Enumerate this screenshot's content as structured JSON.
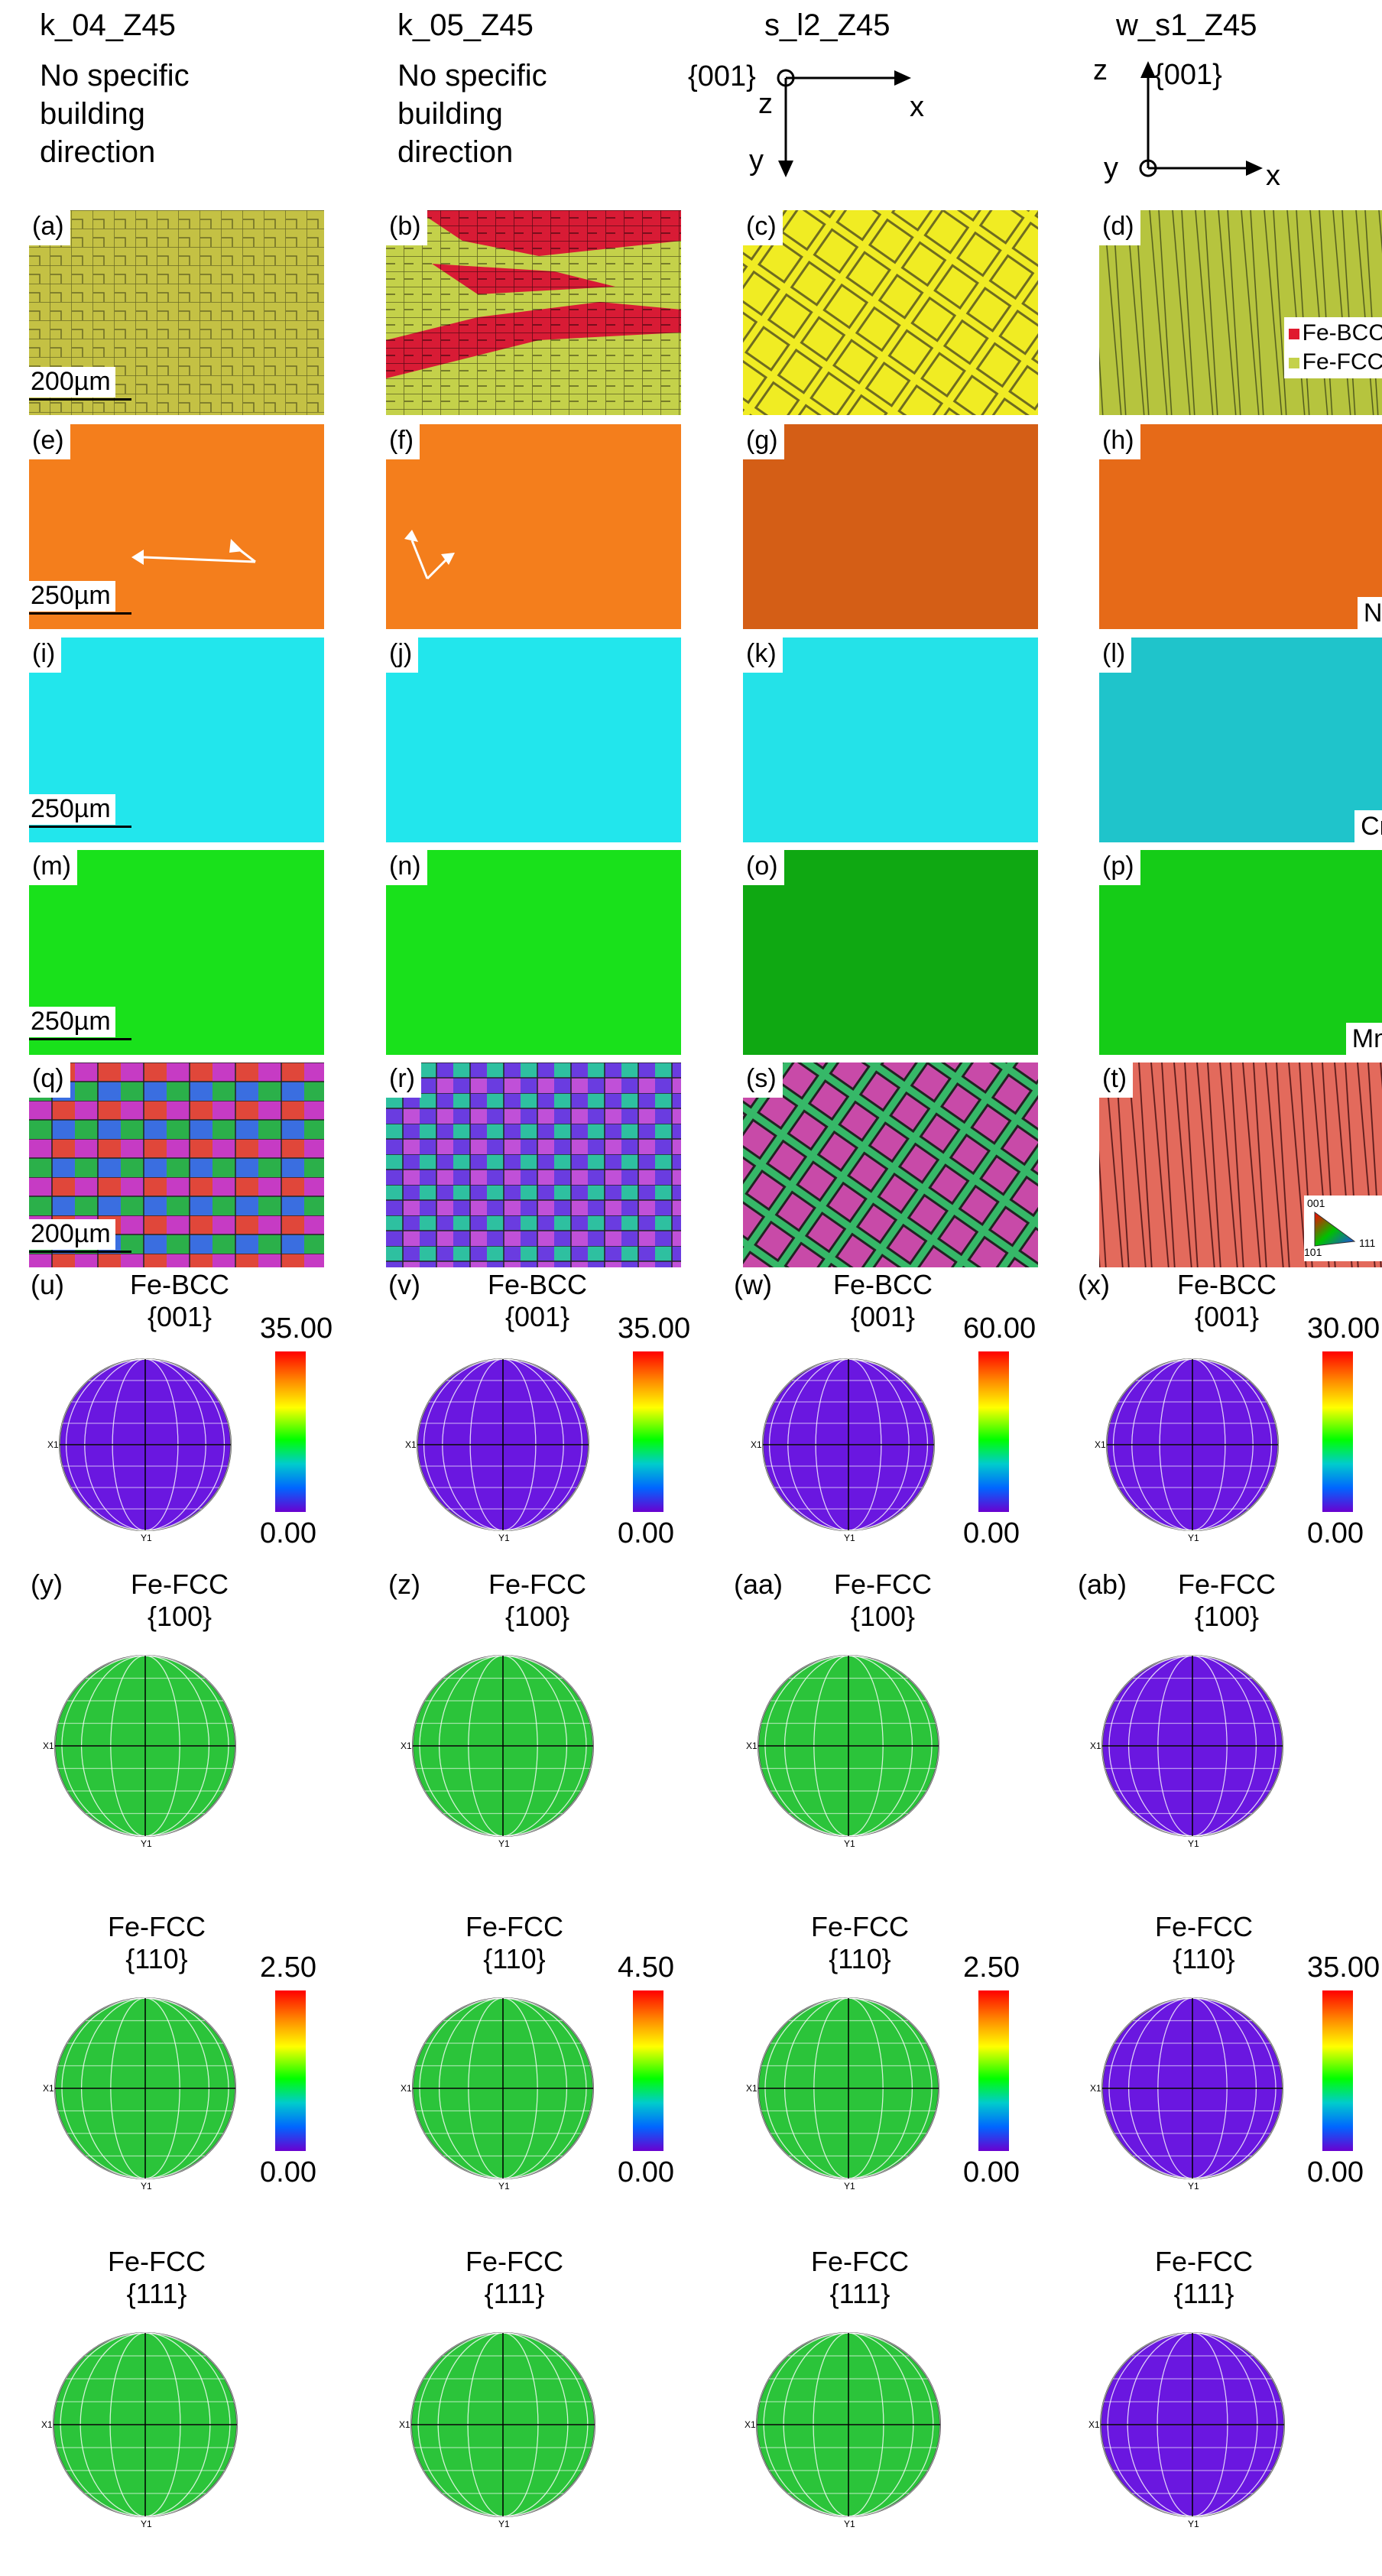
{
  "columns": [
    {
      "title": "k_04_Z45",
      "subtitle": [
        "No specific",
        "building",
        "direction"
      ]
    },
    {
      "title": "k_05_Z45",
      "subtitle": [
        "No specific",
        "building",
        "direction"
      ]
    },
    {
      "title": "s_l2_Z45",
      "axes": {
        "plane": "{001}",
        "a": "z",
        "b": "x",
        "c": "y"
      }
    },
    {
      "title": "w_s1_Z45",
      "axes": {
        "plane": "{001}",
        "a": "z",
        "b": "y",
        "c": "x"
      }
    }
  ],
  "rows": {
    "phase": {
      "labels": [
        "(a)",
        "(b)",
        "(c)",
        "(d)"
      ],
      "scale": "200µm",
      "legend": [
        {
          "label": "Fe-BCC",
          "color": "#e0192e"
        },
        {
          "label": "Fe-FCC",
          "color": "#c4d14a"
        }
      ]
    },
    "ni": {
      "labels": [
        "(e)",
        "(f)",
        "(g)",
        "(h)"
      ],
      "scale": "250µm",
      "element": "Ni"
    },
    "cr": {
      "labels": [
        "(i)",
        "(j)",
        "(k)",
        "(l)"
      ],
      "scale": "250µm",
      "element": "Cr"
    },
    "mn": {
      "labels": [
        "(m)",
        "(n)",
        "(o)",
        "(p)"
      ],
      "scale": "250µm",
      "element": "Mn"
    },
    "ipf": {
      "labels": [
        "(q)",
        "(r)",
        "(s)",
        "(t)"
      ],
      "scale": "200µm",
      "triangle": [
        "001",
        "101",
        "111"
      ]
    }
  },
  "pole_figures": {
    "bcc": {
      "phase": "Fe-BCC",
      "plane": "{001}",
      "labels": [
        "(u)",
        "(v)",
        "(w)",
        "(x)"
      ],
      "max": [
        "35.00",
        "35.00",
        "60.00",
        "30.00"
      ],
      "min": "0.00"
    },
    "fcc100": {
      "phase": "Fe-FCC",
      "plane": "{100}",
      "labels": [
        "(y)",
        "(z)",
        "(aa)",
        "(ab)"
      ]
    },
    "fcc110": {
      "phase": "Fe-FCC",
      "plane": "{110}",
      "max": [
        "2.50",
        "4.50",
        "2.50",
        "35.00"
      ],
      "min": "0.00"
    },
    "fcc111": {
      "phase": "Fe-FCC",
      "plane": "{111}"
    }
  },
  "axis_marks": {
    "x": "X1",
    "y": "Y1"
  },
  "colors": {
    "fcc": "#c4d14a",
    "bcc": "#e0192e",
    "ni": "#f07a1c",
    "cr": "#21e6ec",
    "mn": "#19e11b",
    "pf_bg": "#6a17e0"
  }
}
